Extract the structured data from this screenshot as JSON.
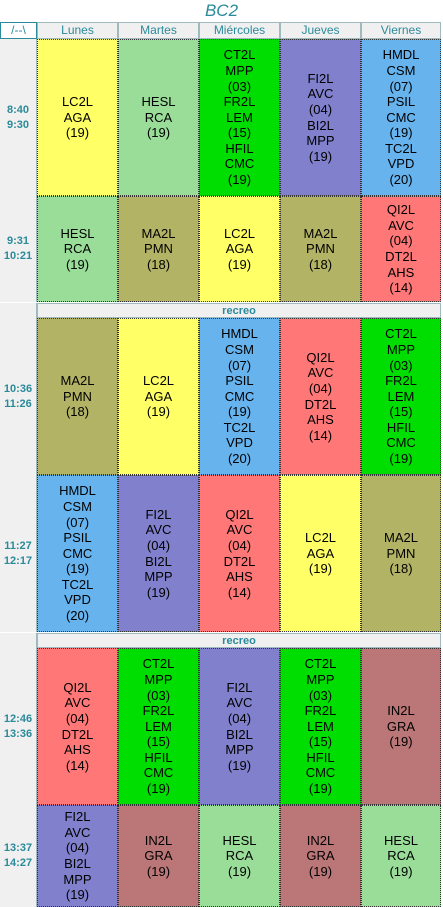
{
  "title": "BC2",
  "header": {
    "corner": "/--\\",
    "days": [
      "Lunes",
      "Martes",
      "Miércoles",
      "Jueves",
      "Viernes"
    ]
  },
  "break_label": "recreo",
  "colors": {
    "yellow": "#ffff66",
    "lightgreen": "#99dd99",
    "green": "#00dd00",
    "purple": "#8080cc",
    "blue": "#66b3ee",
    "olive": "#b3b366",
    "red": "#ff7777",
    "brown": "#bb7777"
  },
  "periods": [
    {
      "time": "8:40\n9:30",
      "cells": [
        {
          "lines": [
            "LC2L",
            "AGA",
            "(19)"
          ],
          "color": "yellow"
        },
        {
          "lines": [
            "HESL",
            "RCA",
            "(19)"
          ],
          "color": "lightgreen"
        },
        {
          "lines": [
            "CT2L",
            "MPP",
            "(03)",
            "FR2L",
            "LEM",
            "(15)",
            "HFIL",
            "CMC",
            "(19)"
          ],
          "color": "green"
        },
        {
          "lines": [
            "FI2L",
            "AVC",
            "(04)",
            "BI2L",
            "MPP",
            "(19)"
          ],
          "color": "purple"
        },
        {
          "lines": [
            "HMDL",
            "CSM",
            "(07)",
            "PSIL",
            "CMC",
            "(19)",
            "TC2L",
            "VPD",
            "(20)"
          ],
          "color": "blue"
        }
      ]
    },
    {
      "time": "9:31\n10:21",
      "cells": [
        {
          "lines": [
            "HESL",
            "RCA",
            "(19)"
          ],
          "color": "lightgreen"
        },
        {
          "lines": [
            "MA2L",
            "PMN",
            "(18)"
          ],
          "color": "olive"
        },
        {
          "lines": [
            "LC2L",
            "AGA",
            "(19)"
          ],
          "color": "yellow"
        },
        {
          "lines": [
            "MA2L",
            "PMN",
            "(18)"
          ],
          "color": "olive"
        },
        {
          "lines": [
            "QI2L",
            "AVC",
            "(04)",
            "DT2L",
            "AHS",
            "(14)"
          ],
          "color": "red"
        }
      ]
    },
    {
      "time": "10:36\n11:26",
      "cells": [
        {
          "lines": [
            "MA2L",
            "PMN",
            "(18)"
          ],
          "color": "olive"
        },
        {
          "lines": [
            "LC2L",
            "AGA",
            "(19)"
          ],
          "color": "yellow"
        },
        {
          "lines": [
            "HMDL",
            "CSM",
            "(07)",
            "PSIL",
            "CMC",
            "(19)",
            "TC2L",
            "VPD",
            "(20)"
          ],
          "color": "blue"
        },
        {
          "lines": [
            "QI2L",
            "AVC",
            "(04)",
            "DT2L",
            "AHS",
            "(14)"
          ],
          "color": "red"
        },
        {
          "lines": [
            "CT2L",
            "MPP",
            "(03)",
            "FR2L",
            "LEM",
            "(15)",
            "HFIL",
            "CMC",
            "(19)"
          ],
          "color": "green"
        }
      ]
    },
    {
      "time": "11:27\n12:17",
      "cells": [
        {
          "lines": [
            "HMDL",
            "CSM",
            "(07)",
            "PSIL",
            "CMC",
            "(19)",
            "TC2L",
            "VPD",
            "(20)"
          ],
          "color": "blue"
        },
        {
          "lines": [
            "FI2L",
            "AVC",
            "(04)",
            "BI2L",
            "MPP",
            "(19)"
          ],
          "color": "purple"
        },
        {
          "lines": [
            "QI2L",
            "AVC",
            "(04)",
            "DT2L",
            "AHS",
            "(14)"
          ],
          "color": "red"
        },
        {
          "lines": [
            "LC2L",
            "AGA",
            "(19)"
          ],
          "color": "yellow"
        },
        {
          "lines": [
            "MA2L",
            "PMN",
            "(18)"
          ],
          "color": "olive"
        }
      ]
    },
    {
      "time": "12:46\n13:36",
      "cells": [
        {
          "lines": [
            "QI2L",
            "AVC",
            "(04)",
            "DT2L",
            "AHS",
            "(14)"
          ],
          "color": "red"
        },
        {
          "lines": [
            "CT2L",
            "MPP",
            "(03)",
            "FR2L",
            "LEM",
            "(15)",
            "HFIL",
            "CMC",
            "(19)"
          ],
          "color": "green"
        },
        {
          "lines": [
            "FI2L",
            "AVC",
            "(04)",
            "BI2L",
            "MPP",
            "(19)"
          ],
          "color": "purple"
        },
        {
          "lines": [
            "CT2L",
            "MPP",
            "(03)",
            "FR2L",
            "LEM",
            "(15)",
            "HFIL",
            "CMC",
            "(19)"
          ],
          "color": "green"
        },
        {
          "lines": [
            "IN2L",
            "GRA",
            "(19)"
          ],
          "color": "brown"
        }
      ]
    },
    {
      "time": "13:37\n14:27",
      "cells": [
        {
          "lines": [
            "FI2L",
            "AVC",
            "(04)",
            "BI2L",
            "MPP",
            "(19)"
          ],
          "color": "purple"
        },
        {
          "lines": [
            "IN2L",
            "GRA",
            "(19)"
          ],
          "color": "brown"
        },
        {
          "lines": [
            "HESL",
            "RCA",
            "(19)"
          ],
          "color": "lightgreen"
        },
        {
          "lines": [
            "IN2L",
            "GRA",
            "(19)"
          ],
          "color": "brown"
        },
        {
          "lines": [
            "HESL",
            "RCA",
            "(19)"
          ],
          "color": "lightgreen"
        }
      ]
    }
  ]
}
